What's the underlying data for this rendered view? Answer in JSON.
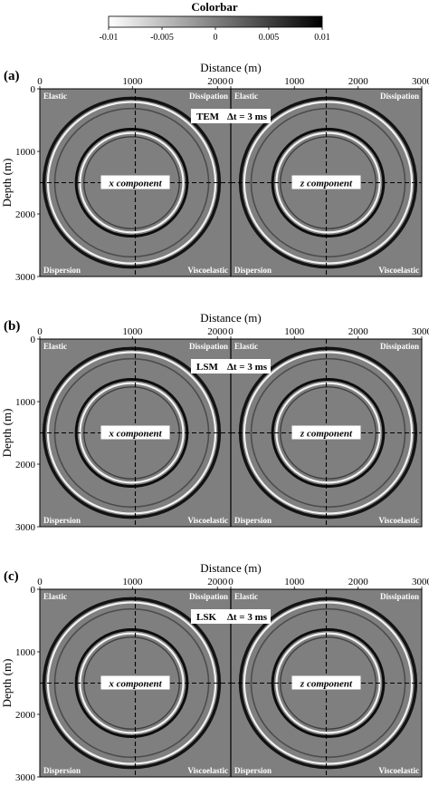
{
  "colorbar": {
    "title": "Colorbar",
    "ticks": [
      "-0.01",
      "-0.005",
      "0",
      "0.005",
      "0.01"
    ]
  },
  "axes": {
    "xlabel": "Distance (m)",
    "ylabel": "Depth (m)",
    "x_ticks": [
      "0",
      "1000",
      "2000",
      "0",
      "1000",
      "2000",
      "3000"
    ],
    "y_ticks": [
      "0",
      "1000",
      "2000",
      "3000"
    ]
  },
  "quadrant_labels": {
    "top_left": "Elastic",
    "top_right": "Dissipation",
    "bottom_left": "Dispersion",
    "bottom_right": "Viscoelastic"
  },
  "components": {
    "x": "x component",
    "z": "z component"
  },
  "panels": [
    {
      "letter": "(a)",
      "method": "TEM",
      "dt_label": "Δt = 3 ms"
    },
    {
      "letter": "(b)",
      "method": "LSM",
      "dt_label": "Δt = 3 ms"
    },
    {
      "letter": "(c)",
      "method": "LSK",
      "dt_label": "Δt = 3 ms"
    }
  ]
}
